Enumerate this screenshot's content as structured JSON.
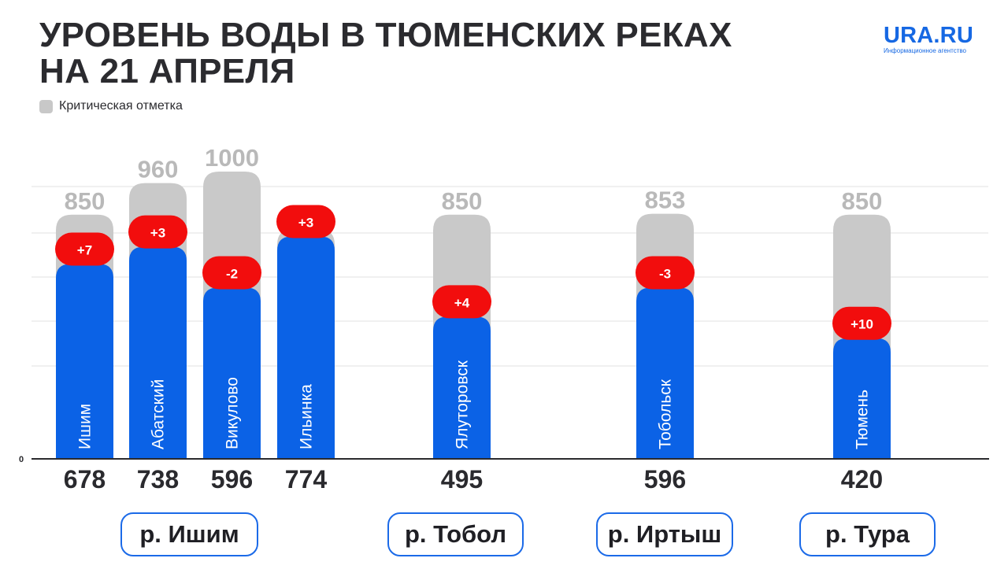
{
  "title_lines": [
    "УРОВЕНЬ ВОДЫ В ТЮМЕНСКИХ РЕКАХ",
    "НА 21 АПРЕЛЯ"
  ],
  "logo": {
    "name": "URA.RU",
    "subtitle": "Информационное агентство"
  },
  "legend": {
    "critical_label": "Критическая отметка"
  },
  "rivers": [
    "р. Ишим",
    "р. Тобол",
    "р. Иртыш",
    "р. Тура"
  ],
  "colors": {
    "level": "#0b62e6",
    "critical": "#c9c9c9",
    "change": "#f20d0d",
    "critical_text": "#b9b9b9"
  },
  "chart_data": {
    "type": "bar",
    "title": "УРОВЕНЬ ВОДЫ В ТЮМЕНСКИХ РЕКАХ НА 21 АПРЕЛЯ",
    "y_tick_labels": [
      "0"
    ],
    "ylim": [
      0,
      1000
    ],
    "grid": true,
    "categories": [
      "Ишим",
      "Абатский",
      "Викулово",
      "Ильинка",
      "Ялуторовск",
      "Тобольск",
      "Тюмень"
    ],
    "river_of_category": [
      "р. Ишим",
      "р. Ишим",
      "р. Ишим",
      "р. Ишим",
      "р. Тобол",
      "р. Иртыш",
      "р. Тура"
    ],
    "series": [
      {
        "name": "Критическая отметка",
        "values": [
          850,
          960,
          1000,
          800,
          850,
          853,
          850
        ]
      },
      {
        "values": [
          678,
          738,
          596,
          774,
          495,
          596,
          420
        ]
      }
    ],
    "change_labels": [
      "+7",
      "+3",
      "-2",
      "+3",
      "+4",
      "-3",
      "+10"
    ]
  }
}
